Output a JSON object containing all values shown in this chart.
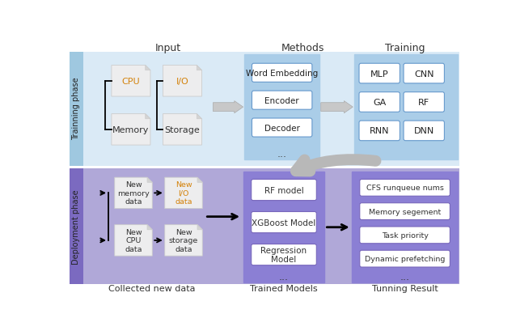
{
  "title_input": "Input",
  "title_methods": "Methods",
  "title_training": "Training",
  "label_training_phase": "Trainning phase",
  "label_deployment_phase": "Deployment phase",
  "label_collected": "Collected new data",
  "label_trained_models": "Trained Models",
  "label_tunning": "Tunning Result",
  "methods_boxes": [
    "Word Embedding",
    "Encoder",
    "Decoder"
  ],
  "training_boxes": [
    [
      "MLP",
      "CNN"
    ],
    [
      "GA",
      "RF"
    ],
    [
      "RNN",
      "DNN"
    ]
  ],
  "trained_models_boxes": [
    "RF model",
    "XGBoost Model",
    "Regression\nModel"
  ],
  "tunning_boxes": [
    "CFS runqueue nums",
    "Memory segement",
    "Task priority",
    "Dynamic prefetching"
  ],
  "bg_training": "#daeaf6",
  "bg_deployment": "#b0a8d8",
  "bg_methods_train": "#aacde8",
  "bg_training_box": "#aacde8",
  "bg_methods_deploy": "#8b7fd4",
  "bg_tunning_box": "#8b7fd4",
  "box_white": "#ffffff",
  "text_dark": "#333333",
  "text_orange": "#d4820a",
  "text_blue": "#4a7fbd",
  "side_train_bg": "#9fc8e0",
  "side_deploy_bg": "#7b6ac0",
  "doc_bg": "#e8e8e8",
  "doc_edge": "#cccccc",
  "arrow_gray": "#b0b0b0",
  "arrow_black": "#111111",
  "box_edge_blue": "#6699cc",
  "box_edge_purple": "#7766bb"
}
